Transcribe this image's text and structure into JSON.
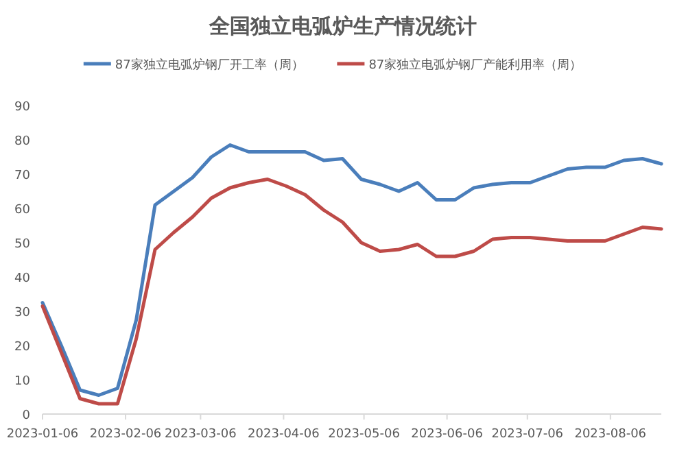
{
  "chart_data": {
    "type": "line",
    "title": "全国独立电弧炉生产情况统计",
    "x": [
      "2023-01-06",
      "2023-01-13",
      "2023-01-20",
      "2023-01-27",
      "2023-02-03",
      "2023-02-10",
      "2023-02-17",
      "2023-02-24",
      "2023-03-03",
      "2023-03-10",
      "2023-03-17",
      "2023-03-24",
      "2023-03-31",
      "2023-04-07",
      "2023-04-14",
      "2023-04-21",
      "2023-04-28",
      "2023-05-05",
      "2023-05-12",
      "2023-05-19",
      "2023-05-26",
      "2023-06-02",
      "2023-06-09",
      "2023-06-16",
      "2023-06-23",
      "2023-06-30",
      "2023-07-07",
      "2023-07-14",
      "2023-07-21",
      "2023-07-28",
      "2023-08-04",
      "2023-08-11",
      "2023-08-18",
      "2023-08-25"
    ],
    "series": [
      {
        "name": "87家独立电弧炉钢厂开工率（周）",
        "color": "#4a7ebb",
        "values": [
          32.5,
          20,
          7,
          5.5,
          7.5,
          27.5,
          61,
          65,
          69,
          75,
          78.5,
          76.5,
          76.5,
          76.5,
          76.5,
          74,
          74.5,
          68.5,
          67,
          65,
          67.5,
          62.5,
          62.5,
          66,
          67,
          67.5,
          67.5,
          69.5,
          71.5,
          72,
          72,
          74,
          74.5,
          73
        ]
      },
      {
        "name": "87家独立电弧炉钢厂产能利用率（周）",
        "color": "#be4b48",
        "values": [
          31.5,
          18,
          4.5,
          3,
          3,
          22,
          48,
          53,
          57.5,
          63,
          66,
          67.5,
          68.5,
          66.5,
          64,
          59.5,
          56,
          50,
          47.5,
          48,
          49.5,
          46,
          46,
          47.5,
          51,
          51.5,
          51.5,
          51,
          50.5,
          50.5,
          50.5,
          52.5,
          54.5,
          54
        ]
      }
    ],
    "xlim": [
      "2023-01-06",
      "2023-08-25"
    ],
    "xticks": [
      "2023-01-06",
      "2023-02-06",
      "2023-03-06",
      "2023-04-06",
      "2023-05-06",
      "2023-06-06",
      "2023-07-06",
      "2023-08-06"
    ],
    "ylim": [
      0,
      90
    ],
    "yticks": [
      0,
      10,
      20,
      30,
      40,
      50,
      60,
      70,
      80,
      90
    ],
    "grid": false,
    "legend": "top",
    "line_style": "solid",
    "marker": "none"
  }
}
